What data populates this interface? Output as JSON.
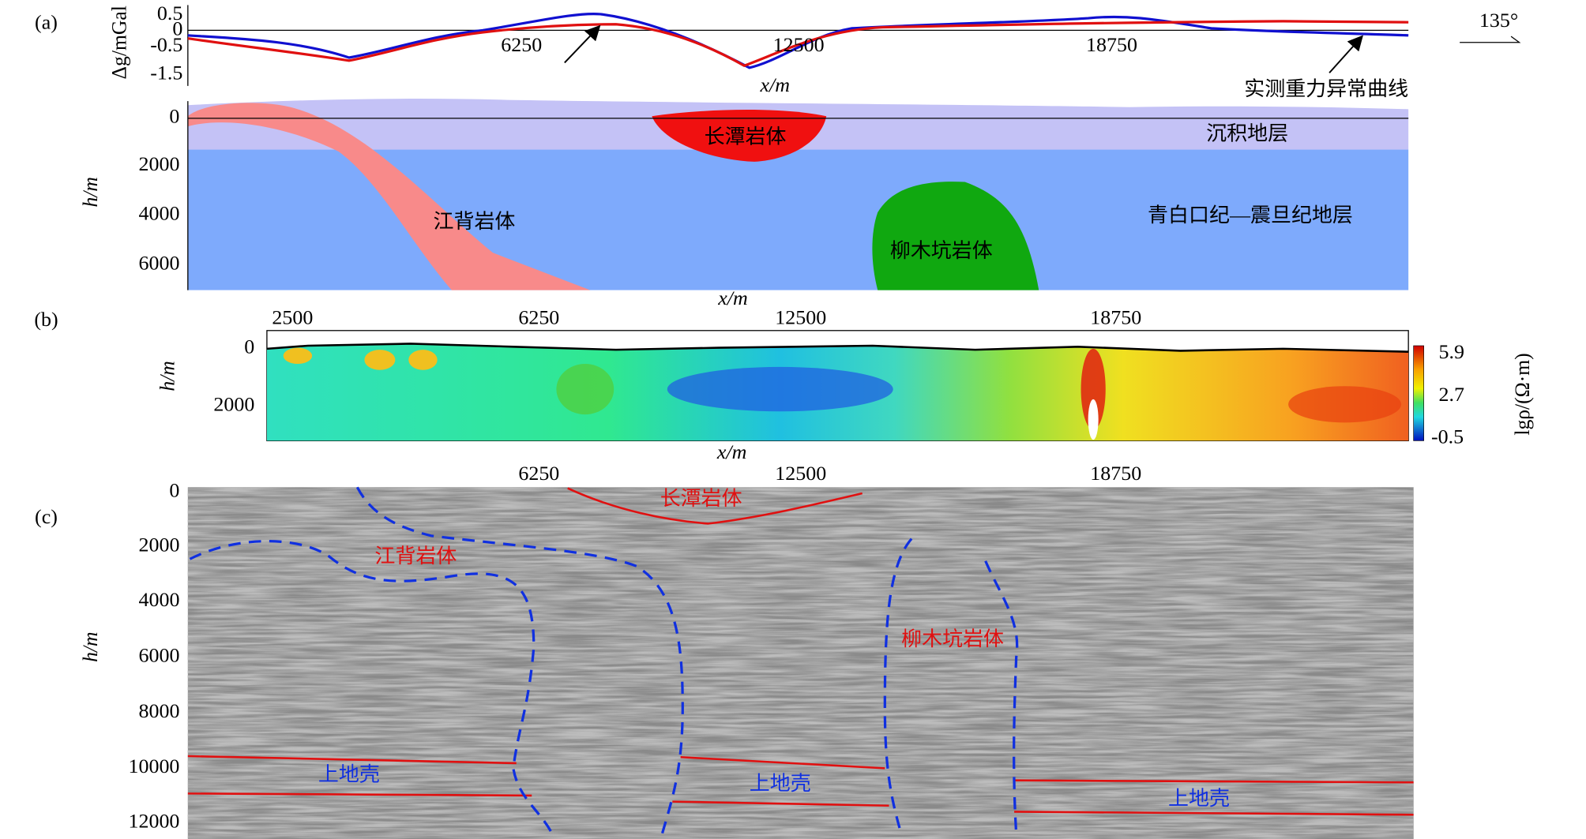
{
  "panel_a": {
    "label": "(a)",
    "gravity": {
      "y_label": "Δg/mGal",
      "y_ticks": [
        "0.5",
        "0",
        "-0.5",
        "-1.5"
      ],
      "x_ticks": [
        "6250",
        "12500",
        "18750"
      ],
      "x_label": "x/m",
      "azimuth": "135°",
      "annotation": "实测重力异常曲线"
    },
    "section": {
      "y_label": "h/m",
      "y_ticks": [
        "0",
        "2000",
        "4000",
        "6000"
      ],
      "x_label": "x/m",
      "units": [
        "长潭岩体",
        "沉积地层",
        "江背岩体",
        "青白口纪—震旦纪地层",
        "柳木坑岩体"
      ]
    }
  },
  "panel_b": {
    "label": "(b)",
    "x_ticks": [
      "2500",
      "6250",
      "12500",
      "18750"
    ],
    "y_ticks": [
      "0",
      "2000"
    ],
    "y_label": "h/m",
    "x_label": "x/m",
    "colorbar_ticks": [
      "5.9",
      "2.7",
      "-0.5"
    ],
    "colorbar_label": "lgρ/(Ω·m)"
  },
  "panel_c": {
    "label": "(c)",
    "x_ticks": [
      "6250",
      "12500",
      "18750"
    ],
    "y_ticks": [
      "0",
      "2000",
      "4000",
      "6000",
      "8000",
      "10000",
      "12000"
    ],
    "y_label": "h/m",
    "units": [
      "长潭岩体",
      "江背岩体",
      "柳木坑岩体",
      "上地壳",
      "上地壳",
      "上地壳"
    ]
  }
}
